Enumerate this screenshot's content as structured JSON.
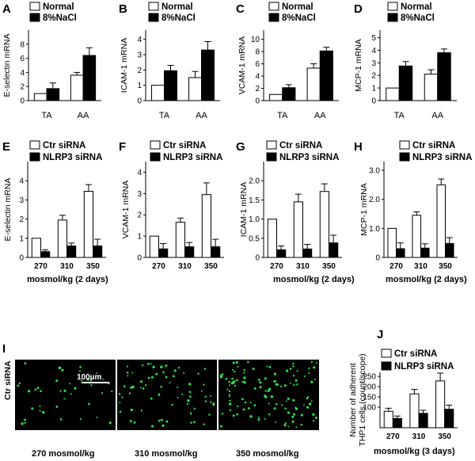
{
  "panels_row1": [
    {
      "label": "A",
      "ylabel": "E-selectin mRNA",
      "ylim": [
        0,
        10
      ],
      "ticks": [
        0,
        2,
        4,
        6,
        8
      ],
      "chart_data": {
        "type": "bar",
        "categories": [
          "TA",
          "AA"
        ],
        "series": [
          {
            "name": "Normal",
            "values": [
              1.0,
              3.6
            ],
            "errors": [
              0.0,
              0.4
            ]
          },
          {
            "name": "8%NaCl",
            "values": [
              1.7,
              6.4
            ],
            "errors": [
              0.8,
              1.1
            ]
          }
        ]
      }
    },
    {
      "label": "B",
      "ylabel": "ICAM-1 mRNA",
      "ylim": [
        0,
        4.6
      ],
      "ticks": [
        0,
        1,
        2,
        3,
        4
      ],
      "chart_data": {
        "type": "bar",
        "categories": [
          "TA",
          "AA"
        ],
        "series": [
          {
            "name": "Normal",
            "values": [
              1.0,
              1.5
            ],
            "errors": [
              0.0,
              0.4
            ]
          },
          {
            "name": "8%NaCl",
            "values": [
              1.95,
              3.3
            ],
            "errors": [
              0.35,
              0.55
            ]
          }
        ]
      }
    },
    {
      "label": "C",
      "ylabel": "VCAM-1 mRNA",
      "ylim": [
        0,
        11.5
      ],
      "ticks": [
        0,
        2,
        4,
        6,
        8,
        10
      ],
      "chart_data": {
        "type": "bar",
        "categories": [
          "TA",
          "AA"
        ],
        "series": [
          {
            "name": "Normal",
            "values": [
              1.0,
              5.3
            ],
            "errors": [
              0.0,
              0.7
            ]
          },
          {
            "name": "8%NaCl",
            "values": [
              2.1,
              8.1
            ],
            "errors": [
              0.5,
              0.6
            ]
          }
        ]
      }
    },
    {
      "label": "D",
      "ylabel": "MCP-1 mRNA",
      "ylim": [
        0,
        5.6
      ],
      "ticks": [
        0,
        1,
        2,
        3,
        4,
        5
      ],
      "chart_data": {
        "type": "bar",
        "categories": [
          "TA",
          "AA"
        ],
        "series": [
          {
            "name": "Normal",
            "values": [
              1.0,
              2.1
            ],
            "errors": [
              0.0,
              0.35
            ]
          },
          {
            "name": "8%NaCl",
            "values": [
              2.75,
              3.8
            ],
            "errors": [
              0.35,
              0.3
            ]
          }
        ]
      }
    }
  ],
  "row1_legend": {
    "normal": "Normal",
    "nacl": "8%NaCl"
  },
  "panels_row2": [
    {
      "label": "E",
      "ylabel": "E-selectin mRNA",
      "ylim": [
        0,
        5
      ],
      "ticks": [
        0,
        1,
        2,
        3,
        4
      ],
      "chart_data": {
        "type": "bar",
        "categories": [
          "270",
          "310",
          "350"
        ],
        "series": [
          {
            "name": "Ctr siRNA",
            "values": [
              1.0,
              1.95,
              3.45
            ],
            "errors": [
              0.0,
              0.25,
              0.35
            ]
          },
          {
            "name": "NLRP3 siRNA",
            "values": [
              0.3,
              0.6,
              0.6
            ],
            "errors": [
              0.1,
              0.15,
              0.35
            ]
          }
        ]
      }
    },
    {
      "label": "F",
      "ylabel": "VCAM-1 mRNA",
      "ylim": [
        0,
        4.5
      ],
      "ticks": [
        0,
        1,
        2,
        3,
        4
      ],
      "chart_data": {
        "type": "bar",
        "categories": [
          "270",
          "310",
          "350"
        ],
        "series": [
          {
            "name": "Ctr siRNA",
            "values": [
              1.0,
              1.65,
              2.95
            ],
            "errors": [
              0.0,
              0.2,
              0.55
            ]
          },
          {
            "name": "NLRP3 siRNA",
            "values": [
              0.4,
              0.5,
              0.5
            ],
            "errors": [
              0.25,
              0.2,
              0.35
            ]
          }
        ]
      }
    },
    {
      "label": "G",
      "ylabel": "ICAM-1 mRNA",
      "ylim": [
        0,
        2.5
      ],
      "ticks": [
        0,
        0.5,
        1.0,
        1.5,
        2.0
      ],
      "tick_labels": [
        "0",
        "0.5",
        "1.0",
        "1.5",
        "2.0"
      ],
      "chart_data": {
        "type": "bar",
        "categories": [
          "270",
          "310",
          "350"
        ],
        "series": [
          {
            "name": "Ctr siRNA",
            "values": [
              1.0,
              1.45,
              1.72
            ],
            "errors": [
              0.0,
              0.2,
              0.2
            ]
          },
          {
            "name": "NLRP3 siRNA",
            "values": [
              0.2,
              0.22,
              0.38
            ],
            "errors": [
              0.1,
              0.12,
              0.2
            ]
          }
        ]
      }
    },
    {
      "label": "H",
      "ylabel": "MCP-1 mRNA",
      "ylim": [
        0,
        3.3
      ],
      "ticks": [
        0,
        1.0,
        2.0,
        3.0
      ],
      "tick_labels": [
        "0",
        "1.0",
        "2.0",
        "3.0"
      ],
      "chart_data": {
        "type": "bar",
        "categories": [
          "270",
          "310",
          "350"
        ],
        "series": [
          {
            "name": "Ctr siRNA",
            "values": [
              1.0,
              1.45,
              2.5
            ],
            "errors": [
              0.0,
              0.12,
              0.2
            ]
          },
          {
            "name": "NLRP3 siRNA",
            "values": [
              0.3,
              0.32,
              0.48
            ],
            "errors": [
              0.2,
              0.15,
              0.2
            ]
          }
        ]
      }
    }
  ],
  "row2_legend": {
    "ctr": "Ctr siRNA",
    "nlrp3": "NLRP3 siRNA"
  },
  "row2_xlabel": "mosmol/kg (2 days)",
  "panel_I": {
    "label": "I",
    "row_labels": [
      "Ctr siRNA",
      "NLRP3 siRNA"
    ],
    "col_labels": [
      "270 mosmol/kg",
      "310 mosmol/kg",
      "350 mosmol/kg"
    ],
    "scale_bar": "100µm",
    "cell_color": "#2ee84a"
  },
  "panel_J": {
    "label": "J",
    "ylabel": "Number of adherent THP1 cells (count/scope)",
    "ylim": [
      0,
      270
    ],
    "ticks": [
      100,
      150,
      200,
      250
    ],
    "xlabel": "mosmol/kg (3 days)",
    "chart_data": {
      "type": "bar",
      "categories": [
        "270",
        "310",
        "350"
      ],
      "series": [
        {
          "name": "Ctr siRNA",
          "values": [
            80,
            165,
            228
          ],
          "errors": [
            15,
            22,
            38
          ]
        },
        {
          "name": "NLRP3 siRNA",
          "values": [
            45,
            70,
            90
          ],
          "errors": [
            12,
            15,
            20
          ]
        }
      ]
    }
  }
}
